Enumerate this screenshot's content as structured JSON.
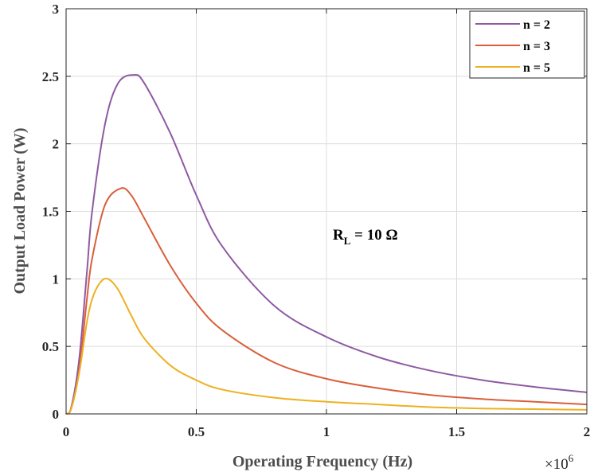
{
  "chart_data": {
    "type": "line",
    "xlabel": "Operating Frequency (Hz)",
    "ylabel": "Output Load Power (W)",
    "x_exponent": {
      "base": "×10",
      "power": "6"
    },
    "xlim": [
      0,
      2
    ],
    "ylim": [
      0,
      3
    ],
    "x_ticks": [
      "0",
      "0.5",
      "1",
      "1.5",
      "2"
    ],
    "y_ticks": [
      "0",
      "0.5",
      "1",
      "1.5",
      "2",
      "2.5",
      "3"
    ],
    "grid": true,
    "legend_position": "top-right",
    "annotation": {
      "main": "R",
      "sub": "L",
      "rest": " = 10 Ω"
    },
    "series": [
      {
        "name": "n = 2",
        "color": "#8e5aa2",
        "x": [
          0,
          0.02,
          0.05,
          0.08,
          0.1,
          0.15,
          0.2,
          0.26,
          0.3,
          0.4,
          0.5,
          0.6,
          0.8,
          1.0,
          1.2,
          1.4,
          1.6,
          1.8,
          2.0
        ],
        "y": [
          0,
          0.05,
          0.4,
          1.05,
          1.5,
          2.15,
          2.45,
          2.51,
          2.45,
          2.08,
          1.62,
          1.24,
          0.8,
          0.57,
          0.42,
          0.32,
          0.25,
          0.2,
          0.16
        ]
      },
      {
        "name": "n = 3",
        "color": "#d95f3b",
        "x": [
          0,
          0.02,
          0.05,
          0.08,
          0.1,
          0.15,
          0.21,
          0.25,
          0.3,
          0.4,
          0.5,
          0.6,
          0.8,
          1.0,
          1.2,
          1.4,
          1.6,
          1.8,
          2.0
        ],
        "y": [
          0,
          0.04,
          0.32,
          0.85,
          1.15,
          1.55,
          1.67,
          1.62,
          1.45,
          1.1,
          0.82,
          0.62,
          0.38,
          0.26,
          0.19,
          0.14,
          0.11,
          0.09,
          0.07
        ]
      },
      {
        "name": "n = 5",
        "color": "#edb120",
        "x": [
          0,
          0.02,
          0.05,
          0.08,
          0.1,
          0.13,
          0.16,
          0.2,
          0.25,
          0.3,
          0.4,
          0.5,
          0.6,
          0.8,
          1.0,
          1.2,
          1.4,
          1.6,
          1.8,
          2.0
        ],
        "y": [
          0,
          0.04,
          0.3,
          0.68,
          0.85,
          0.97,
          1.0,
          0.92,
          0.73,
          0.56,
          0.36,
          0.25,
          0.18,
          0.12,
          0.09,
          0.07,
          0.05,
          0.04,
          0.035,
          0.03
        ]
      }
    ]
  }
}
